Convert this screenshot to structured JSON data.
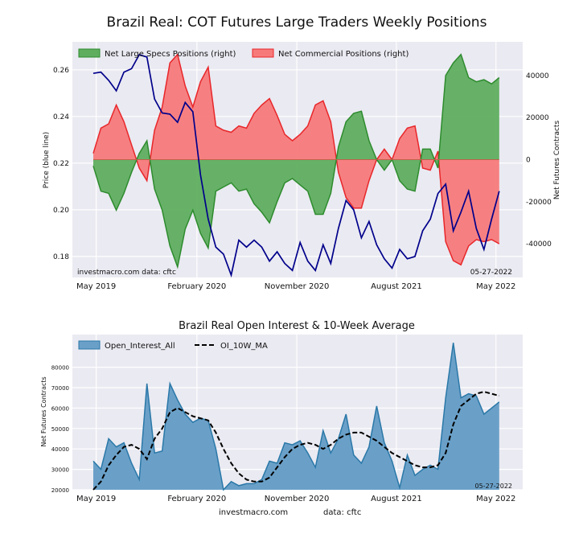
{
  "page": {
    "main_title": "Brazil Real: COT Futures Large Traders Weekly Positions",
    "footer_site": "investmacro.com",
    "footer_source": "data: cftc"
  },
  "colors": {
    "background": "#ffffff",
    "plot_bg": "#eaeaf2",
    "grid": "#ffffff",
    "specs_fill": "#5fae5f",
    "specs_line": "#2e8b2e",
    "comm_fill": "#f77a7a",
    "comm_line": "#e8262a",
    "price_line": "#00008b",
    "oi_fill": "#6aa0c8",
    "oi_line": "#2a78a8",
    "ma_line": "#000000"
  },
  "chart_data": [
    {
      "type": "area",
      "title": "Brazil Real: COT Futures Large Traders Weekly Positions",
      "ylabel_left": "Price (blue line)",
      "ylabel_right": "Net Futures Contracts",
      "x_tick_labels": [
        "May 2019",
        "February 2020",
        "November 2020",
        "August 2021",
        "May 2022"
      ],
      "left_ticks": [
        "0.18",
        "0.20",
        "0.22",
        "0.24",
        "0.26"
      ],
      "right_ticks": [
        "-40000",
        "-20000",
        "0",
        "20000",
        "40000"
      ],
      "left_ylim": [
        0.171,
        0.272
      ],
      "right_ylim": [
        -56000,
        56000
      ],
      "annotation_left": "investmacro.com   data: cftc",
      "annotation_right": "05-27-2022",
      "legend": [
        "Net Large Specs Positions (right)",
        "Net Commercial Positions (right)"
      ],
      "legend_position": "top-left",
      "grid": true,
      "x_range": [
        "2019-05-07",
        "2022-05-31"
      ],
      "dates": [
        "2019-05-07",
        "2019-05-28",
        "2019-06-18",
        "2019-07-09",
        "2019-07-30",
        "2019-08-20",
        "2019-09-10",
        "2019-10-01",
        "2019-10-22",
        "2019-11-12",
        "2019-12-03",
        "2019-12-24",
        "2020-01-14",
        "2020-02-04",
        "2020-02-25",
        "2020-03-17",
        "2020-04-07",
        "2020-04-28",
        "2020-05-19",
        "2020-06-09",
        "2020-06-30",
        "2020-07-21",
        "2020-08-11",
        "2020-09-01",
        "2020-09-22",
        "2020-10-13",
        "2020-11-03",
        "2020-11-24",
        "2020-12-15",
        "2021-01-05",
        "2021-01-26",
        "2021-02-16",
        "2021-03-09",
        "2021-03-30",
        "2021-04-20",
        "2021-05-11",
        "2021-06-01",
        "2021-06-22",
        "2021-07-13",
        "2021-08-03",
        "2021-08-24",
        "2021-09-14",
        "2021-10-05",
        "2021-10-26",
        "2021-11-16",
        "2021-12-07",
        "2021-12-28",
        "2022-01-18",
        "2022-02-08",
        "2022-03-01",
        "2022-03-22",
        "2022-04-12",
        "2022-05-03",
        "2022-05-24"
      ],
      "series": [
        {
          "name": "Net Large Specs Positions (right)",
          "axis": "right",
          "values": [
            -3000,
            -15000,
            -16000,
            -24000,
            -16000,
            -6000,
            3000,
            9000,
            -14000,
            -24000,
            -41000,
            -51000,
            -33000,
            -24000,
            -35000,
            -42000,
            -15000,
            -13000,
            -11000,
            -15000,
            -14000,
            -21000,
            -25000,
            -30000,
            -20000,
            -11000,
            -9000,
            -12000,
            -15000,
            -26000,
            -26000,
            -16000,
            6000,
            18000,
            22000,
            23000,
            9000,
            0,
            -5000,
            0,
            -10000,
            -14000,
            -15000,
            5000,
            5000,
            -4000,
            40000,
            46000,
            50000,
            39000,
            37000,
            38000,
            36000,
            39000
          ]
        },
        {
          "name": "Net Commercial Positions (right)",
          "axis": "right",
          "values": [
            3000,
            15000,
            17000,
            26000,
            18000,
            7000,
            -4000,
            -10000,
            14000,
            25000,
            46000,
            50000,
            35000,
            25000,
            37000,
            44000,
            16000,
            14000,
            13000,
            16000,
            15000,
            22000,
            26000,
            29000,
            21000,
            12000,
            9000,
            12000,
            16000,
            26000,
            28000,
            18000,
            -6000,
            -18000,
            -23000,
            -23000,
            -10000,
            0,
            5000,
            0,
            10000,
            15000,
            16000,
            -4000,
            -5000,
            4000,
            -39000,
            -48000,
            -50000,
            -41000,
            -38000,
            -39000,
            -38000,
            -40000
          ]
        },
        {
          "name": "Price",
          "axis": "left",
          "values": [
            0.2585,
            0.259,
            0.2555,
            0.251,
            0.259,
            0.2605,
            0.2665,
            0.2655,
            0.2475,
            0.2415,
            0.241,
            0.2375,
            0.246,
            0.242,
            0.215,
            0.196,
            0.184,
            0.181,
            0.172,
            0.187,
            0.184,
            0.187,
            0.184,
            0.178,
            0.182,
            0.177,
            0.174,
            0.186,
            0.178,
            0.174,
            0.185,
            0.177,
            0.192,
            0.204,
            0.2,
            0.188,
            0.195,
            0.185,
            0.179,
            0.175,
            0.183,
            0.179,
            0.18,
            0.191,
            0.196,
            0.207,
            0.211,
            0.191,
            0.199,
            0.208,
            0.192,
            0.183,
            0.196,
            0.208
          ]
        }
      ]
    },
    {
      "type": "area",
      "title": "Brazil Real Open Interest & 10-Week Average",
      "ylabel": "Net Futures Contracts",
      "xlabel": "",
      "x_tick_labels": [
        "May 2019",
        "February 2020",
        "November 2020",
        "August 2021",
        "May 2022"
      ],
      "y_ticks": [
        "20000",
        "30000",
        "40000",
        "50000",
        "60000",
        "70000",
        "80000"
      ],
      "ylim": [
        20000,
        96000
      ],
      "annotation_right": "05-27-2022",
      "legend": [
        "Open_Interest_All",
        "OI_10W_MA"
      ],
      "legend_position": "top-left",
      "grid": true,
      "x_range": [
        "2019-05-07",
        "2022-05-31"
      ],
      "dates": [
        "2019-05-07",
        "2019-05-28",
        "2019-06-18",
        "2019-07-09",
        "2019-07-30",
        "2019-08-20",
        "2019-09-10",
        "2019-10-01",
        "2019-10-22",
        "2019-11-12",
        "2019-12-03",
        "2019-12-24",
        "2020-01-14",
        "2020-02-04",
        "2020-02-25",
        "2020-03-17",
        "2020-04-07",
        "2020-04-28",
        "2020-05-19",
        "2020-06-09",
        "2020-06-30",
        "2020-07-21",
        "2020-08-11",
        "2020-09-01",
        "2020-09-22",
        "2020-10-13",
        "2020-11-03",
        "2020-11-24",
        "2020-12-15",
        "2021-01-05",
        "2021-01-26",
        "2021-02-16",
        "2021-03-09",
        "2021-03-30",
        "2021-04-20",
        "2021-05-11",
        "2021-06-01",
        "2021-06-22",
        "2021-07-13",
        "2021-08-03",
        "2021-08-24",
        "2021-09-14",
        "2021-10-05",
        "2021-10-26",
        "2021-11-16",
        "2021-12-07",
        "2021-12-28",
        "2022-01-18",
        "2022-02-08",
        "2022-03-01",
        "2022-03-22",
        "2022-04-12",
        "2022-05-03",
        "2022-05-24"
      ],
      "series": [
        {
          "name": "Open_Interest_All",
          "values": [
            34000,
            30000,
            45000,
            41000,
            43000,
            33000,
            25000,
            72000,
            38000,
            39000,
            72000,
            64000,
            57000,
            53000,
            55000,
            54000,
            40000,
            20000,
            24000,
            22000,
            23000,
            23000,
            25000,
            34000,
            33000,
            43000,
            42000,
            44000,
            38000,
            31000,
            49000,
            38000,
            45000,
            57000,
            37000,
            33000,
            41000,
            61000,
            43000,
            34000,
            21000,
            37000,
            27000,
            30000,
            32000,
            30000,
            65000,
            92000,
            65000,
            67000,
            66000,
            57000,
            60000,
            63000
          ]
        },
        {
          "name": "OI_10W_MA",
          "values": [
            20000,
            24000,
            32000,
            37000,
            41000,
            42000,
            40000,
            35000,
            45000,
            50000,
            58000,
            60000,
            58000,
            56000,
            55000,
            54000,
            48000,
            40000,
            33000,
            28000,
            25000,
            24000,
            24000,
            26000,
            31000,
            36000,
            40000,
            42000,
            43000,
            42000,
            40000,
            42000,
            45000,
            47000,
            48000,
            48000,
            46000,
            44000,
            41000,
            38000,
            36000,
            34000,
            32000,
            31000,
            31000,
            32000,
            38000,
            52000,
            61000,
            64000,
            67000,
            68000,
            67000,
            66000
          ]
        }
      ]
    }
  ]
}
